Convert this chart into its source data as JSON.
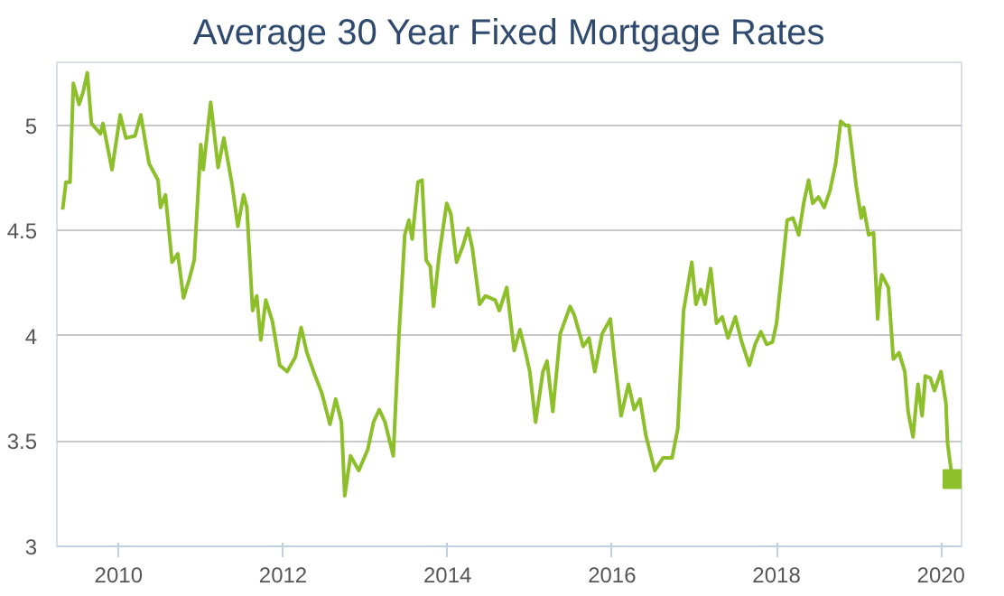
{
  "chart_data": {
    "type": "line",
    "title": "Average 30 Year Fixed Mortgage Rates",
    "xlim": [
      2009.25,
      2020.25
    ],
    "xticks": [
      2010,
      2012,
      2014,
      2016,
      2018,
      2020
    ],
    "ylim": [
      3,
      5.3
    ],
    "yticks": [
      3,
      3.5,
      4,
      4.5,
      5
    ],
    "grid": "y",
    "series": [
      {
        "color": "#8cbf2a",
        "x": [
          2009.32,
          2009.36,
          2009.41,
          2009.45,
          2009.52,
          2009.57,
          2009.62,
          2009.67,
          2009.78,
          2009.81,
          2009.92,
          2010.02,
          2010.09,
          2010.2,
          2010.27,
          2010.37,
          2010.48,
          2010.51,
          2010.57,
          2010.65,
          2010.72,
          2010.79,
          2010.86,
          2010.92,
          2011.0,
          2011.03,
          2011.12,
          2011.21,
          2011.28,
          2011.38,
          2011.45,
          2011.52,
          2011.56,
          2011.63,
          2011.68,
          2011.73,
          2011.79,
          2011.87,
          2011.96,
          2012.05,
          2012.15,
          2012.22,
          2012.29,
          2012.4,
          2012.47,
          2012.57,
          2012.64,
          2012.71,
          2012.75,
          2012.82,
          2012.92,
          2013.03,
          2013.1,
          2013.17,
          2013.24,
          2013.34,
          2013.41,
          2013.48,
          2013.53,
          2013.57,
          2013.64,
          2013.69,
          2013.74,
          2013.79,
          2013.83,
          2013.9,
          2013.99,
          2014.04,
          2014.11,
          2014.18,
          2014.25,
          2014.3,
          2014.39,
          2014.46,
          2014.58,
          2014.63,
          2014.72,
          2014.81,
          2014.88,
          2014.95,
          2015.0,
          2015.07,
          2015.16,
          2015.21,
          2015.28,
          2015.37,
          2015.49,
          2015.54,
          2015.65,
          2015.72,
          2015.79,
          2015.88,
          2015.98,
          2016.03,
          2016.11,
          2016.2,
          2016.27,
          2016.34,
          2016.41,
          2016.52,
          2016.62,
          2016.73,
          2016.8,
          2016.87,
          2016.97,
          2017.02,
          2017.08,
          2017.13,
          2017.2,
          2017.27,
          2017.34,
          2017.41,
          2017.5,
          2017.57,
          2017.67,
          2017.74,
          2017.81,
          2017.88,
          2017.95,
          2018.0,
          2018.13,
          2018.2,
          2018.27,
          2018.33,
          2018.39,
          2018.44,
          2018.51,
          2018.58,
          2018.65,
          2018.72,
          2018.78,
          2018.84,
          2018.88,
          2018.97,
          2019.03,
          2019.06,
          2019.12,
          2019.18,
          2019.23,
          2019.25,
          2019.28,
          2019.36,
          2019.42,
          2019.49,
          2019.56,
          2019.6,
          2019.66,
          2019.72,
          2019.77,
          2019.81,
          2019.87,
          2019.92,
          2020.0,
          2020.06,
          2020.08,
          2020.14
        ],
        "values": [
          4.6,
          4.73,
          4.73,
          5.2,
          5.1,
          5.16,
          5.25,
          5.01,
          4.96,
          5.01,
          4.79,
          5.05,
          4.94,
          4.95,
          5.05,
          4.82,
          4.74,
          4.61,
          4.67,
          4.35,
          4.39,
          4.18,
          4.27,
          4.36,
          4.91,
          4.79,
          5.11,
          4.8,
          4.94,
          4.72,
          4.52,
          4.67,
          4.61,
          4.12,
          4.19,
          3.98,
          4.17,
          4.07,
          3.86,
          3.83,
          3.9,
          4.04,
          3.92,
          3.8,
          3.73,
          3.58,
          3.7,
          3.59,
          3.24,
          3.43,
          3.36,
          3.46,
          3.59,
          3.65,
          3.59,
          3.43,
          4.01,
          4.48,
          4.55,
          4.46,
          4.73,
          4.74,
          4.36,
          4.33,
          4.14,
          4.39,
          4.63,
          4.58,
          4.35,
          4.42,
          4.51,
          4.42,
          4.15,
          4.19,
          4.17,
          4.12,
          4.23,
          3.93,
          4.03,
          3.92,
          3.83,
          3.59,
          3.83,
          3.88,
          3.64,
          4.01,
          4.14,
          4.1,
          3.95,
          3.99,
          3.83,
          4.01,
          4.08,
          3.89,
          3.62,
          3.77,
          3.65,
          3.7,
          3.53,
          3.36,
          3.42,
          3.42,
          3.56,
          4.12,
          4.35,
          4.15,
          4.22,
          4.15,
          4.32,
          4.06,
          4.09,
          3.99,
          4.09,
          3.98,
          3.86,
          3.96,
          4.02,
          3.96,
          3.97,
          4.06,
          4.55,
          4.56,
          4.48,
          4.63,
          4.74,
          4.63,
          4.66,
          4.61,
          4.69,
          4.82,
          5.02,
          5.0,
          5.0,
          4.71,
          4.56,
          4.61,
          4.48,
          4.49,
          4.08,
          4.21,
          4.29,
          4.23,
          3.89,
          3.92,
          3.83,
          3.64,
          3.52,
          3.77,
          3.62,
          3.81,
          3.8,
          3.74,
          3.83,
          3.68,
          3.49,
          3.31
        ]
      },
      {
        "type": "scatter",
        "marker": "square",
        "color": "#8cbf2a",
        "x": [
          2020.14
        ],
        "values": [
          3.32
        ]
      }
    ]
  }
}
